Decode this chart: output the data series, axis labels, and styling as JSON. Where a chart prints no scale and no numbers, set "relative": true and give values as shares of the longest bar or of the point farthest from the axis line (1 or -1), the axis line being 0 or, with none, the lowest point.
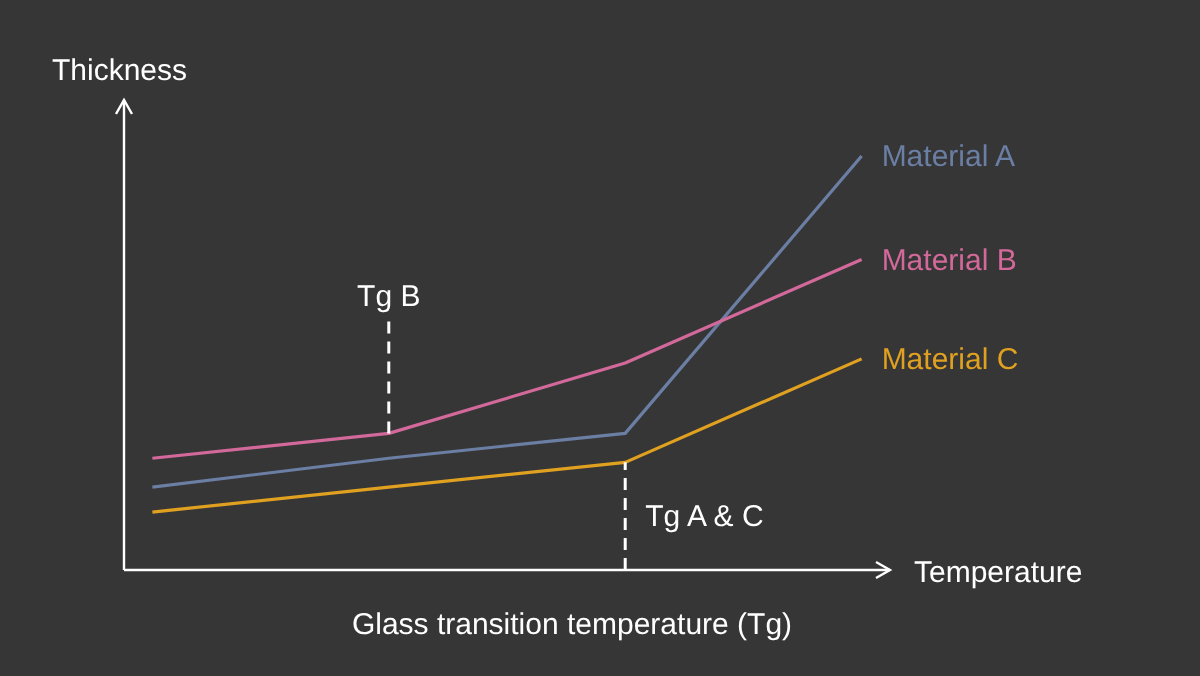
{
  "chart_data": {
    "type": "line",
    "title": "Glass transition temperature (Tg)",
    "xlabel": "Temperature",
    "ylabel": "Thickness",
    "relative": true,
    "categories": [
      null,
      null,
      null,
      null
    ],
    "line_style": "solid",
    "series": [
      {
        "name": "Material A",
        "color": "#6b7ea3",
        "values": [
          0.2,
          0.27,
          0.33,
          1
        ]
      },
      {
        "name": "Material B",
        "color": "#d2699a",
        "values": [
          0.27,
          0.33,
          0.5,
          0.75
        ]
      },
      {
        "name": "Material C",
        "color": "#e0a020",
        "values": [
          0.14,
          0.2,
          0.26,
          0.51
        ]
      }
    ],
    "annotations": [
      "Tg B",
      "Tg A & C"
    ]
  }
}
